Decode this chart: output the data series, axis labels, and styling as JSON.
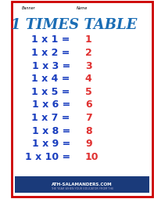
{
  "title": "1 TIMES TABLE",
  "title_color": "#1a6db5",
  "background_color": "#ffffff",
  "border_color": "#cc0000",
  "equations": [
    "1 x 1 = ",
    "1 x 2 = ",
    "1 x 3 = ",
    "1 x 4 = ",
    "1 x 5 = ",
    "1 x 6 = ",
    "1 x 7 = ",
    "1 x 8 = ",
    "1 x 9 = ",
    "1 x 10 = "
  ],
  "answers": [
    "1",
    "2",
    "3",
    "4",
    "5",
    "6",
    "7",
    "8",
    "9",
    "10"
  ],
  "eq_color": "#1a3ebf",
  "ans_color": "#e03030",
  "label_name": "Name",
  "label_banner": "Banner",
  "website": "ATH-SALAMANDERS.COM",
  "subtitle_small": "THE YEAR WHEN YOUR EDUCATOR FROM THE",
  "fig_width": 1.97,
  "fig_height": 2.55
}
